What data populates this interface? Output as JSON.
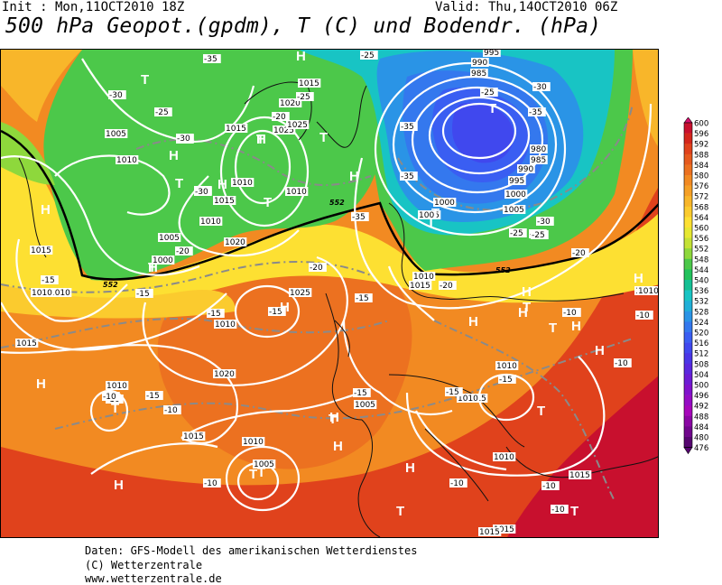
{
  "header": {
    "init_text": "Init : Mon,11OCT2010 18Z",
    "valid_text": "Valid: Thu,14OCT2010 06Z",
    "title": "500 hPa Geopot.(gpdm), T (C) und Bodendr. (hPa)"
  },
  "legend": {
    "levels": [
      "600",
      "596",
      "592",
      "588",
      "584",
      "580",
      "576",
      "572",
      "568",
      "564",
      "560",
      "556",
      "552",
      "548",
      "544",
      "540",
      "536",
      "532",
      "528",
      "524",
      "520",
      "516",
      "512",
      "508",
      "504",
      "500",
      "496",
      "492",
      "488",
      "484",
      "480",
      "476"
    ],
    "colors": [
      "#d9106f",
      "#c8102e",
      "#d4261c",
      "#e0421c",
      "#e65a1e",
      "#ec7120",
      "#f28a22",
      "#f5a026",
      "#f8b62a",
      "#fbcb2e",
      "#fde032",
      "#e6e832",
      "#c4e236",
      "#8ed83c",
      "#4cc84a",
      "#22c25c",
      "#14c094",
      "#18c4c4",
      "#20b0d8",
      "#2a94e6",
      "#3478ee",
      "#3a5ef2",
      "#4048ee",
      "#4a36e6",
      "#5a28de",
      "#6c1cd4",
      "#8012cc",
      "#940cc4",
      "#a606ba",
      "#8a06a4",
      "#70068c",
      "#560670"
    ]
  },
  "map": {
    "pressure_labels": [
      "995",
      "990",
      "985",
      "980",
      "985",
      "990",
      "995",
      "1000",
      "1005",
      "1000",
      "1005",
      "1010",
      "1015",
      "1015",
      "1005",
      "1010",
      "1020",
      "1025",
      "1025",
      "1015",
      "1010",
      "1015",
      "1010",
      "1015",
      "1020",
      "1005",
      "1000",
      "1015",
      "1010",
      "1010",
      "1025",
      "1010",
      "1020",
      "1010",
      "1015",
      "1010",
      "1005",
      "1010",
      "1015",
      "1010",
      "1015",
      "1005",
      "1010",
      "1010",
      "1015",
      "1010",
      "1015",
      "1015",
      "1010"
    ],
    "temp_labels": [
      "-35",
      "-25",
      "-30",
      "-25",
      "-30",
      "-35",
      "-30",
      "-25",
      "-25",
      "-20",
      "-30",
      "-30",
      "-20",
      "-35",
      "-35",
      "-25",
      "-30",
      "-25",
      "-35",
      "-30",
      "-25",
      "-20",
      "-20",
      "-20",
      "-15",
      "-15",
      "-15",
      "-15",
      "-15",
      "-15",
      "-15",
      "-10",
      "-10",
      "-10",
      "-10",
      "-10",
      "-15",
      "-15",
      "-15",
      "-10",
      "-10",
      "-10",
      "-10",
      "-20",
      "-10"
    ],
    "geopot_labels": [
      "552",
      "552",
      "552"
    ],
    "highs": [
      "H",
      "H",
      "H",
      "H",
      "H",
      "H",
      "H",
      "H",
      "H",
      "H",
      "H",
      "H",
      "H",
      "H",
      "H",
      "H",
      "H",
      "H",
      "H"
    ],
    "lows": [
      "T",
      "T",
      "T",
      "T",
      "T",
      "T",
      "T",
      "T",
      "T",
      "T",
      "T",
      "T",
      "T",
      "T",
      "T",
      "T",
      "T",
      "T"
    ]
  },
  "footer": {
    "source": "Daten: GFS-Modell des amerikanischen Wetterdienstes",
    "copyright": "(C) Wetterzentrale",
    "website": "www.wetterzentrale.de"
  }
}
